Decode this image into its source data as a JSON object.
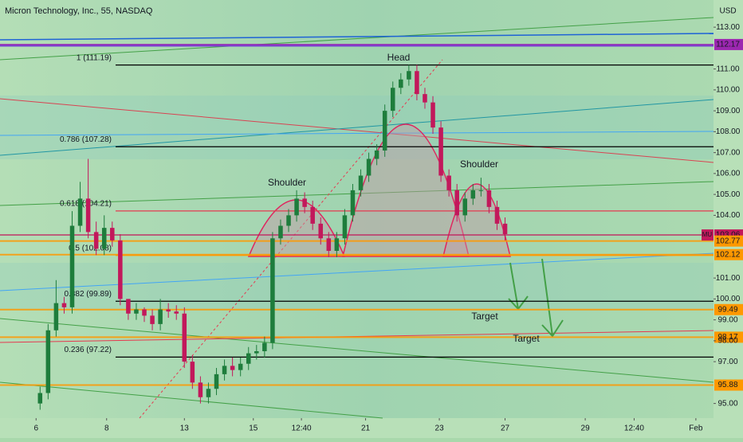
{
  "chart_data": {
    "type": "candlestick",
    "title": "Micron Technology, Inc., 55, NASDAQ",
    "currency": "USD",
    "symbol": "MU",
    "up_color": "#1e7d3c",
    "down_color": "#c2185b",
    "xlim": [
      -5,
      84
    ],
    "xticks": [
      {
        "value": -0.5,
        "label": "6"
      },
      {
        "value": 8.3,
        "label": "8"
      },
      {
        "value": 18,
        "label": "13"
      },
      {
        "value": 26.6,
        "label": "15"
      },
      {
        "value": 32.6,
        "label": "12:40"
      },
      {
        "value": 40.6,
        "label": "21"
      },
      {
        "value": 49.8,
        "label": "23"
      },
      {
        "value": 58,
        "label": "27"
      },
      {
        "value": 68,
        "label": "29"
      },
      {
        "value": 74.1,
        "label": "12:40"
      },
      {
        "value": 81.8,
        "label": "Feb"
      }
    ],
    "ylim": [
      94.3,
      114.3
    ],
    "yticks": [
      {
        "value": 95,
        "label": "95.00"
      },
      {
        "value": 97,
        "label": "97.00"
      },
      {
        "value": 98,
        "label": "98.00"
      },
      {
        "value": 99,
        "label": "99.00"
      },
      {
        "value": 100,
        "label": "100.00"
      },
      {
        "value": 101,
        "label": "101.00"
      },
      {
        "value": 104,
        "label": "104.00"
      },
      {
        "value": 105,
        "label": "105.00"
      },
      {
        "value": 106,
        "label": "106.00"
      },
      {
        "value": 107,
        "label": "107.00"
      },
      {
        "value": 108,
        "label": "108.00"
      },
      {
        "value": 109,
        "label": "109.00"
      },
      {
        "value": 110,
        "label": "110.00"
      },
      {
        "value": 111,
        "label": "111.00"
      },
      {
        "value": 113,
        "label": "113.00"
      }
    ],
    "x": [
      0,
      1,
      2,
      3,
      4,
      5,
      6,
      7,
      8,
      9,
      10,
      11,
      12,
      13,
      14,
      15,
      16,
      17,
      18,
      19,
      20,
      21,
      22,
      23,
      24,
      25,
      26,
      27,
      28,
      29,
      30,
      31,
      32,
      33,
      34,
      35,
      36,
      37,
      38,
      39,
      40,
      41,
      42,
      43,
      44,
      45,
      46,
      47,
      48,
      49,
      50,
      51,
      52,
      53,
      54,
      55,
      56,
      57,
      58
    ],
    "open": [
      95.0,
      95.5,
      98.5,
      99.8,
      99.6,
      103.5,
      104.8,
      103.2,
      102.4,
      103.4,
      102.8,
      100.0,
      99.3,
      99.5,
      99.2,
      98.8,
      99.5,
      99.4,
      99.3,
      97.0,
      96.0,
      95.3,
      95.7,
      96.4,
      96.8,
      96.6,
      96.9,
      97.4,
      97.5,
      97.9,
      102.9,
      103.5,
      104.0,
      104.8,
      104.4,
      103.6,
      102.9,
      102.3,
      102.9,
      104.0,
      105.2,
      105.9,
      106.7,
      107.1,
      109.0,
      110.1,
      110.5,
      110.9,
      109.8,
      109.4,
      108.2,
      105.9,
      105.2,
      104.0,
      104.8,
      105.2,
      105.2,
      104.4,
      103.6
    ],
    "high": [
      95.8,
      98.8,
      100.9,
      100.1,
      104.2,
      105.6,
      106.7,
      103.7,
      104.0,
      103.7,
      103.1,
      99.9,
      99.8,
      99.6,
      99.5,
      100.0,
      99.8,
      99.7,
      99.6,
      97.3,
      96.3,
      96.0,
      96.7,
      97.1,
      97.2,
      97.2,
      97.7,
      97.8,
      98.2,
      103.2,
      103.8,
      104.3,
      105.2,
      105.1,
      104.7,
      103.9,
      103.2,
      103.2,
      104.3,
      105.5,
      106.2,
      107.0,
      107.4,
      109.3,
      110.4,
      110.8,
      111.2,
      111.2,
      110.1,
      109.7,
      108.5,
      106.2,
      105.5,
      105.1,
      105.5,
      105.8,
      105.5,
      104.7,
      103.9
    ],
    "low": [
      94.7,
      95.2,
      98.2,
      99.3,
      99.3,
      103.2,
      102.9,
      102.1,
      102.1,
      102.5,
      99.7,
      99.0,
      99.0,
      98.9,
      98.5,
      98.5,
      99.1,
      99.0,
      96.7,
      95.7,
      95.0,
      95.0,
      95.4,
      96.1,
      96.3,
      96.3,
      96.6,
      97.1,
      97.2,
      97.6,
      102.6,
      103.2,
      103.7,
      104.1,
      103.3,
      102.6,
      102.0,
      102.0,
      102.6,
      103.7,
      104.9,
      105.6,
      106.4,
      106.8,
      108.7,
      109.8,
      110.2,
      109.5,
      109.1,
      107.9,
      105.6,
      104.9,
      103.7,
      103.7,
      104.5,
      104.9,
      104.1,
      103.3,
      102.8
    ],
    "close": [
      95.5,
      98.5,
      99.8,
      99.6,
      103.5,
      104.8,
      103.2,
      102.4,
      103.4,
      102.8,
      100.0,
      99.3,
      99.5,
      99.2,
      98.8,
      99.5,
      99.4,
      99.3,
      97.0,
      96.0,
      95.3,
      95.7,
      96.4,
      96.8,
      96.6,
      96.9,
      97.4,
      97.5,
      97.9,
      102.9,
      103.5,
      104.0,
      104.8,
      104.4,
      103.6,
      102.9,
      102.3,
      102.9,
      104.0,
      105.2,
      105.9,
      106.7,
      107.1,
      109.0,
      110.1,
      110.5,
      110.9,
      109.8,
      109.4,
      108.2,
      105.9,
      105.2,
      104.0,
      104.8,
      105.2,
      105.2,
      104.4,
      103.6,
      103.1
    ],
    "fib_levels": [
      {
        "text": "1 (111.19)",
        "value": 111.19,
        "color": "#000000"
      },
      {
        "text": "0.786 (107.28)",
        "value": 107.28,
        "color": "#000000"
      },
      {
        "text": "0.618 (104.21)",
        "value": 104.21,
        "color": "#e53950"
      },
      {
        "text": "0.5 (102.08)",
        "value": 102.08,
        "color": "#ff9800"
      },
      {
        "text": "0.382 (99.89)",
        "value": 99.89,
        "color": "#000000"
      },
      {
        "text": "0.236 (97.22)",
        "value": 97.22,
        "color": "#000000"
      }
    ],
    "price_tags": [
      {
        "value": 112.17,
        "color": "#9c27b0"
      },
      {
        "value": 103.06,
        "color": "#c2185b"
      },
      {
        "value": 102.77,
        "color": "#ff9800"
      },
      {
        "value": 102.12,
        "color": "#ff9800"
      },
      {
        "value": 99.49,
        "color": "#ff9800"
      },
      {
        "value": 98.17,
        "color": "#ff9800"
      },
      {
        "value": 95.88,
        "color": "#ff9800"
      }
    ],
    "annotations": [
      "Head",
      "Shoulder",
      "Shoulder",
      "Target",
      "Target"
    ]
  }
}
